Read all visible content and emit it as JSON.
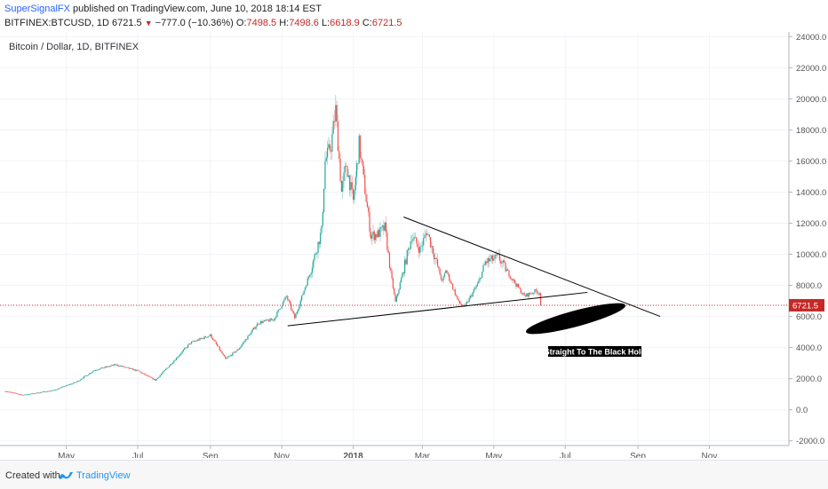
{
  "header": {
    "author": "SuperSignalFX",
    "published_text": " published on TradingView.com, June 10, 2018 18:14 EST",
    "symbol": "BITFINEX:BTCUSD, 1D",
    "last": "6721.5",
    "change": "−777.0 (−10.36%)",
    "o_label": "O:",
    "o_value": "7498.5",
    "h_label": "H:",
    "h_value": "7498.6",
    "l_label": "L:",
    "l_value": "6618.9",
    "c_label": "C:",
    "c_value": "6721.5"
  },
  "chart_data": {
    "type": "candlestick",
    "title": "Bitcoin / Dollar, 1D, BITFINEX",
    "x_tick_labels": [
      "May",
      "Jul",
      "Sep",
      "Nov",
      "2018",
      "Mar",
      "May",
      "Jul",
      "Sep",
      "Nov"
    ],
    "x_tick_dates": [
      "2017-05-01",
      "2017-07-01",
      "2017-09-01",
      "2017-11-01",
      "2018-01-01",
      "2018-03-01",
      "2018-05-01",
      "2018-07-01",
      "2018-09-01",
      "2018-11-01"
    ],
    "x_range": [
      "2017-03-10",
      "2018-12-01"
    ],
    "y_ticks": [
      -2000,
      0,
      2000,
      4000,
      6000,
      8000,
      10000,
      12000,
      14000,
      16000,
      18000,
      20000,
      22000,
      24000
    ],
    "y_tick_labels": [
      "-2000.0",
      "0.0",
      "2000.0",
      "4000.0",
      "6000.0",
      "8000.0",
      "10000.0",
      "12000.0",
      "14000.0",
      "16000.0",
      "18000.0",
      "20000.0",
      "22000.0",
      "24000.0"
    ],
    "ylim": [
      -2300,
      24300
    ],
    "grid": true,
    "price_line": {
      "value": 6721.5,
      "label": "6721.5",
      "color": "#c62828"
    },
    "up_color": "#26a69a",
    "down_color": "#ef5350",
    "key_prices": [
      {
        "date": "2017-03-10",
        "close": 1200
      },
      {
        "date": "2017-03-25",
        "close": 950
      },
      {
        "date": "2017-04-20",
        "close": 1250
      },
      {
        "date": "2017-05-10",
        "close": 1800
      },
      {
        "date": "2017-05-25",
        "close": 2550
      },
      {
        "date": "2017-06-12",
        "close": 2900
      },
      {
        "date": "2017-07-01",
        "close": 2500
      },
      {
        "date": "2017-07-16",
        "close": 1900
      },
      {
        "date": "2017-07-25",
        "close": 2600
      },
      {
        "date": "2017-08-15",
        "close": 4300
      },
      {
        "date": "2017-09-01",
        "close": 4800
      },
      {
        "date": "2017-09-14",
        "close": 3250
      },
      {
        "date": "2017-09-25",
        "close": 3900
      },
      {
        "date": "2017-10-12",
        "close": 5600
      },
      {
        "date": "2017-10-25",
        "close": 5800
      },
      {
        "date": "2017-11-05",
        "close": 7300
      },
      {
        "date": "2017-11-12",
        "close": 5900
      },
      {
        "date": "2017-11-25",
        "close": 8800
      },
      {
        "date": "2017-12-05",
        "close": 11500
      },
      {
        "date": "2017-12-08",
        "close": 16000
      },
      {
        "date": "2017-12-13",
        "close": 17000
      },
      {
        "date": "2017-12-17",
        "close": 19300
      },
      {
        "date": "2017-12-22",
        "close": 14000
      },
      {
        "date": "2017-12-26",
        "close": 15800
      },
      {
        "date": "2018-01-01",
        "close": 13400
      },
      {
        "date": "2018-01-06",
        "close": 17100
      },
      {
        "date": "2018-01-16",
        "close": 11200
      },
      {
        "date": "2018-01-22",
        "close": 11300
      },
      {
        "date": "2018-01-28",
        "close": 11700
      },
      {
        "date": "2018-02-02",
        "close": 8800
      },
      {
        "date": "2018-02-06",
        "close": 6900
      },
      {
        "date": "2018-02-20",
        "close": 11200
      },
      {
        "date": "2018-02-27",
        "close": 10300
      },
      {
        "date": "2018-03-05",
        "close": 11500
      },
      {
        "date": "2018-03-18",
        "close": 8200
      },
      {
        "date": "2018-03-21",
        "close": 9000
      },
      {
        "date": "2018-04-01",
        "close": 6900
      },
      {
        "date": "2018-04-06",
        "close": 6600
      },
      {
        "date": "2018-04-18",
        "close": 8200
      },
      {
        "date": "2018-04-24",
        "close": 9500
      },
      {
        "date": "2018-05-05",
        "close": 9800
      },
      {
        "date": "2018-05-15",
        "close": 8600
      },
      {
        "date": "2018-05-27",
        "close": 7300
      },
      {
        "date": "2018-06-06",
        "close": 7650
      },
      {
        "date": "2018-06-09",
        "close": 7498.5
      },
      {
        "date": "2018-06-10",
        "close": 6721.5
      }
    ],
    "trendlines": [
      {
        "from": {
          "date": "2018-02-13",
          "value": 12400
        },
        "to": {
          "date": "2018-09-20",
          "value": 6000
        }
      },
      {
        "from": {
          "date": "2017-11-06",
          "value": 5400
        },
        "to": {
          "date": "2018-07-20",
          "value": 7550
        }
      }
    ],
    "annotation": {
      "text": "Straight To The Black Hole"
    }
  },
  "footer": {
    "created_with": "Created with",
    "brand": "TradingView",
    "brand_color": "#2196f3"
  }
}
